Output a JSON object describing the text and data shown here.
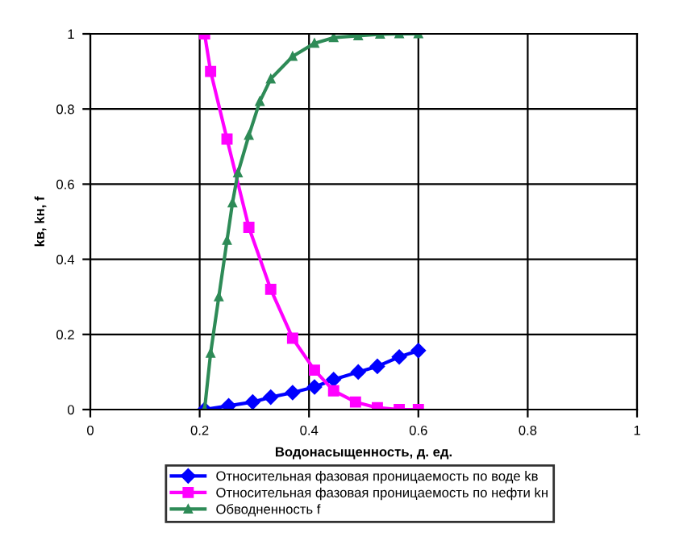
{
  "chart_data": {
    "type": "line",
    "xlabel": "Водонасыщенность, д. ед.",
    "ylabel": "kв, kн, f",
    "xlim": [
      0,
      1
    ],
    "ylim": [
      0,
      1
    ],
    "xticks": [
      0,
      0.2,
      0.4,
      0.6,
      0.8,
      1
    ],
    "yticks": [
      0,
      0.2,
      0.4,
      0.6,
      0.8,
      1
    ],
    "grid": true,
    "legend": "bottom",
    "series": [
      {
        "name": "Относительная фазовая проницаемость по воде kв",
        "color": "#0000ff",
        "marker": "diamond",
        "x": [
          0.209,
          0.253,
          0.297,
          0.33,
          0.37,
          0.41,
          0.445,
          0.49,
          0.525,
          0.565,
          0.6
        ],
        "values": [
          0,
          0.01,
          0.02,
          0.033,
          0.045,
          0.06,
          0.08,
          0.1,
          0.115,
          0.14,
          0.157
        ]
      },
      {
        "name": "Относительная фазовая проницаемость по нефти kн",
        "color": "#ff00ff",
        "marker": "square",
        "x": [
          0.209,
          0.22,
          0.25,
          0.29,
          0.33,
          0.37,
          0.41,
          0.445,
          0.485,
          0.525,
          0.565,
          0.6
        ],
        "values": [
          1,
          0.9,
          0.72,
          0.485,
          0.32,
          0.19,
          0.105,
          0.05,
          0.02,
          0.005,
          0,
          0
        ]
      },
      {
        "name": "Обводненность f",
        "color": "#2e8b57",
        "marker": "triangle",
        "x": [
          0.209,
          0.22,
          0.235,
          0.25,
          0.26,
          0.27,
          0.29,
          0.31,
          0.33,
          0.37,
          0.41,
          0.445,
          0.49,
          0.53,
          0.565,
          0.6
        ],
        "values": [
          0,
          0.15,
          0.3,
          0.45,
          0.55,
          0.63,
          0.73,
          0.82,
          0.88,
          0.94,
          0.975,
          0.99,
          0.995,
          0.999,
          1,
          1
        ]
      }
    ]
  }
}
